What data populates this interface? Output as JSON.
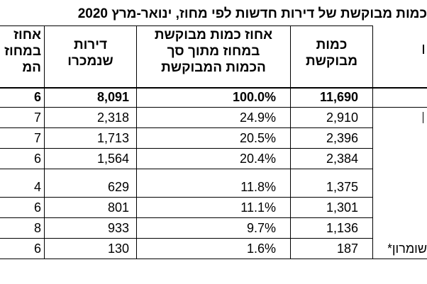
{
  "title": "כמות מבוקשת של דירות חדשות לפי מחוז, ינואר-מרץ",
  "title_year": "2020",
  "columns": {
    "share_partial": [
      "אחוז",
      "במחוז",
      "המ"
    ],
    "sold": [
      "דירות",
      "שנמכרו"
    ],
    "pct_of_total": [
      "אחוז כמות מבוקשת",
      "במחוז מתוך סך",
      "הכמות המבוקשת"
    ],
    "demand": [
      "כמות",
      "מבוקשת"
    ]
  },
  "rows": [
    {
      "partial": "6",
      "sold": "8,091",
      "pct": "100.0%",
      "demand": "11,690",
      "name_fragment": "",
      "bold": true
    },
    {
      "partial": "7",
      "sold": "2,318",
      "pct": "24.9%",
      "demand": "2,910",
      "name_fragment": "",
      "bold": false
    },
    {
      "partial": "7",
      "sold": "1,713",
      "pct": "20.5%",
      "demand": "2,396",
      "name_fragment": "",
      "bold": false
    },
    {
      "partial": "6",
      "sold": "1,564",
      "pct": "20.4%",
      "demand": "2,384",
      "name_fragment": "",
      "bold": false
    },
    {
      "partial": "4",
      "sold": "629",
      "pct": "11.8%",
      "demand": "1,375",
      "name_fragment": "",
      "bold": false
    },
    {
      "partial": "6",
      "sold": "801",
      "pct": "11.1%",
      "demand": "1,301",
      "name_fragment": "",
      "bold": false
    },
    {
      "partial": "8",
      "sold": "933",
      "pct": "9.7%",
      "demand": "1,136",
      "name_fragment": "",
      "bold": false
    },
    {
      "partial": "6",
      "sold": "130",
      "pct": "1.6%",
      "demand": "187",
      "name_fragment": "שומרון*",
      "bold": false
    }
  ]
}
